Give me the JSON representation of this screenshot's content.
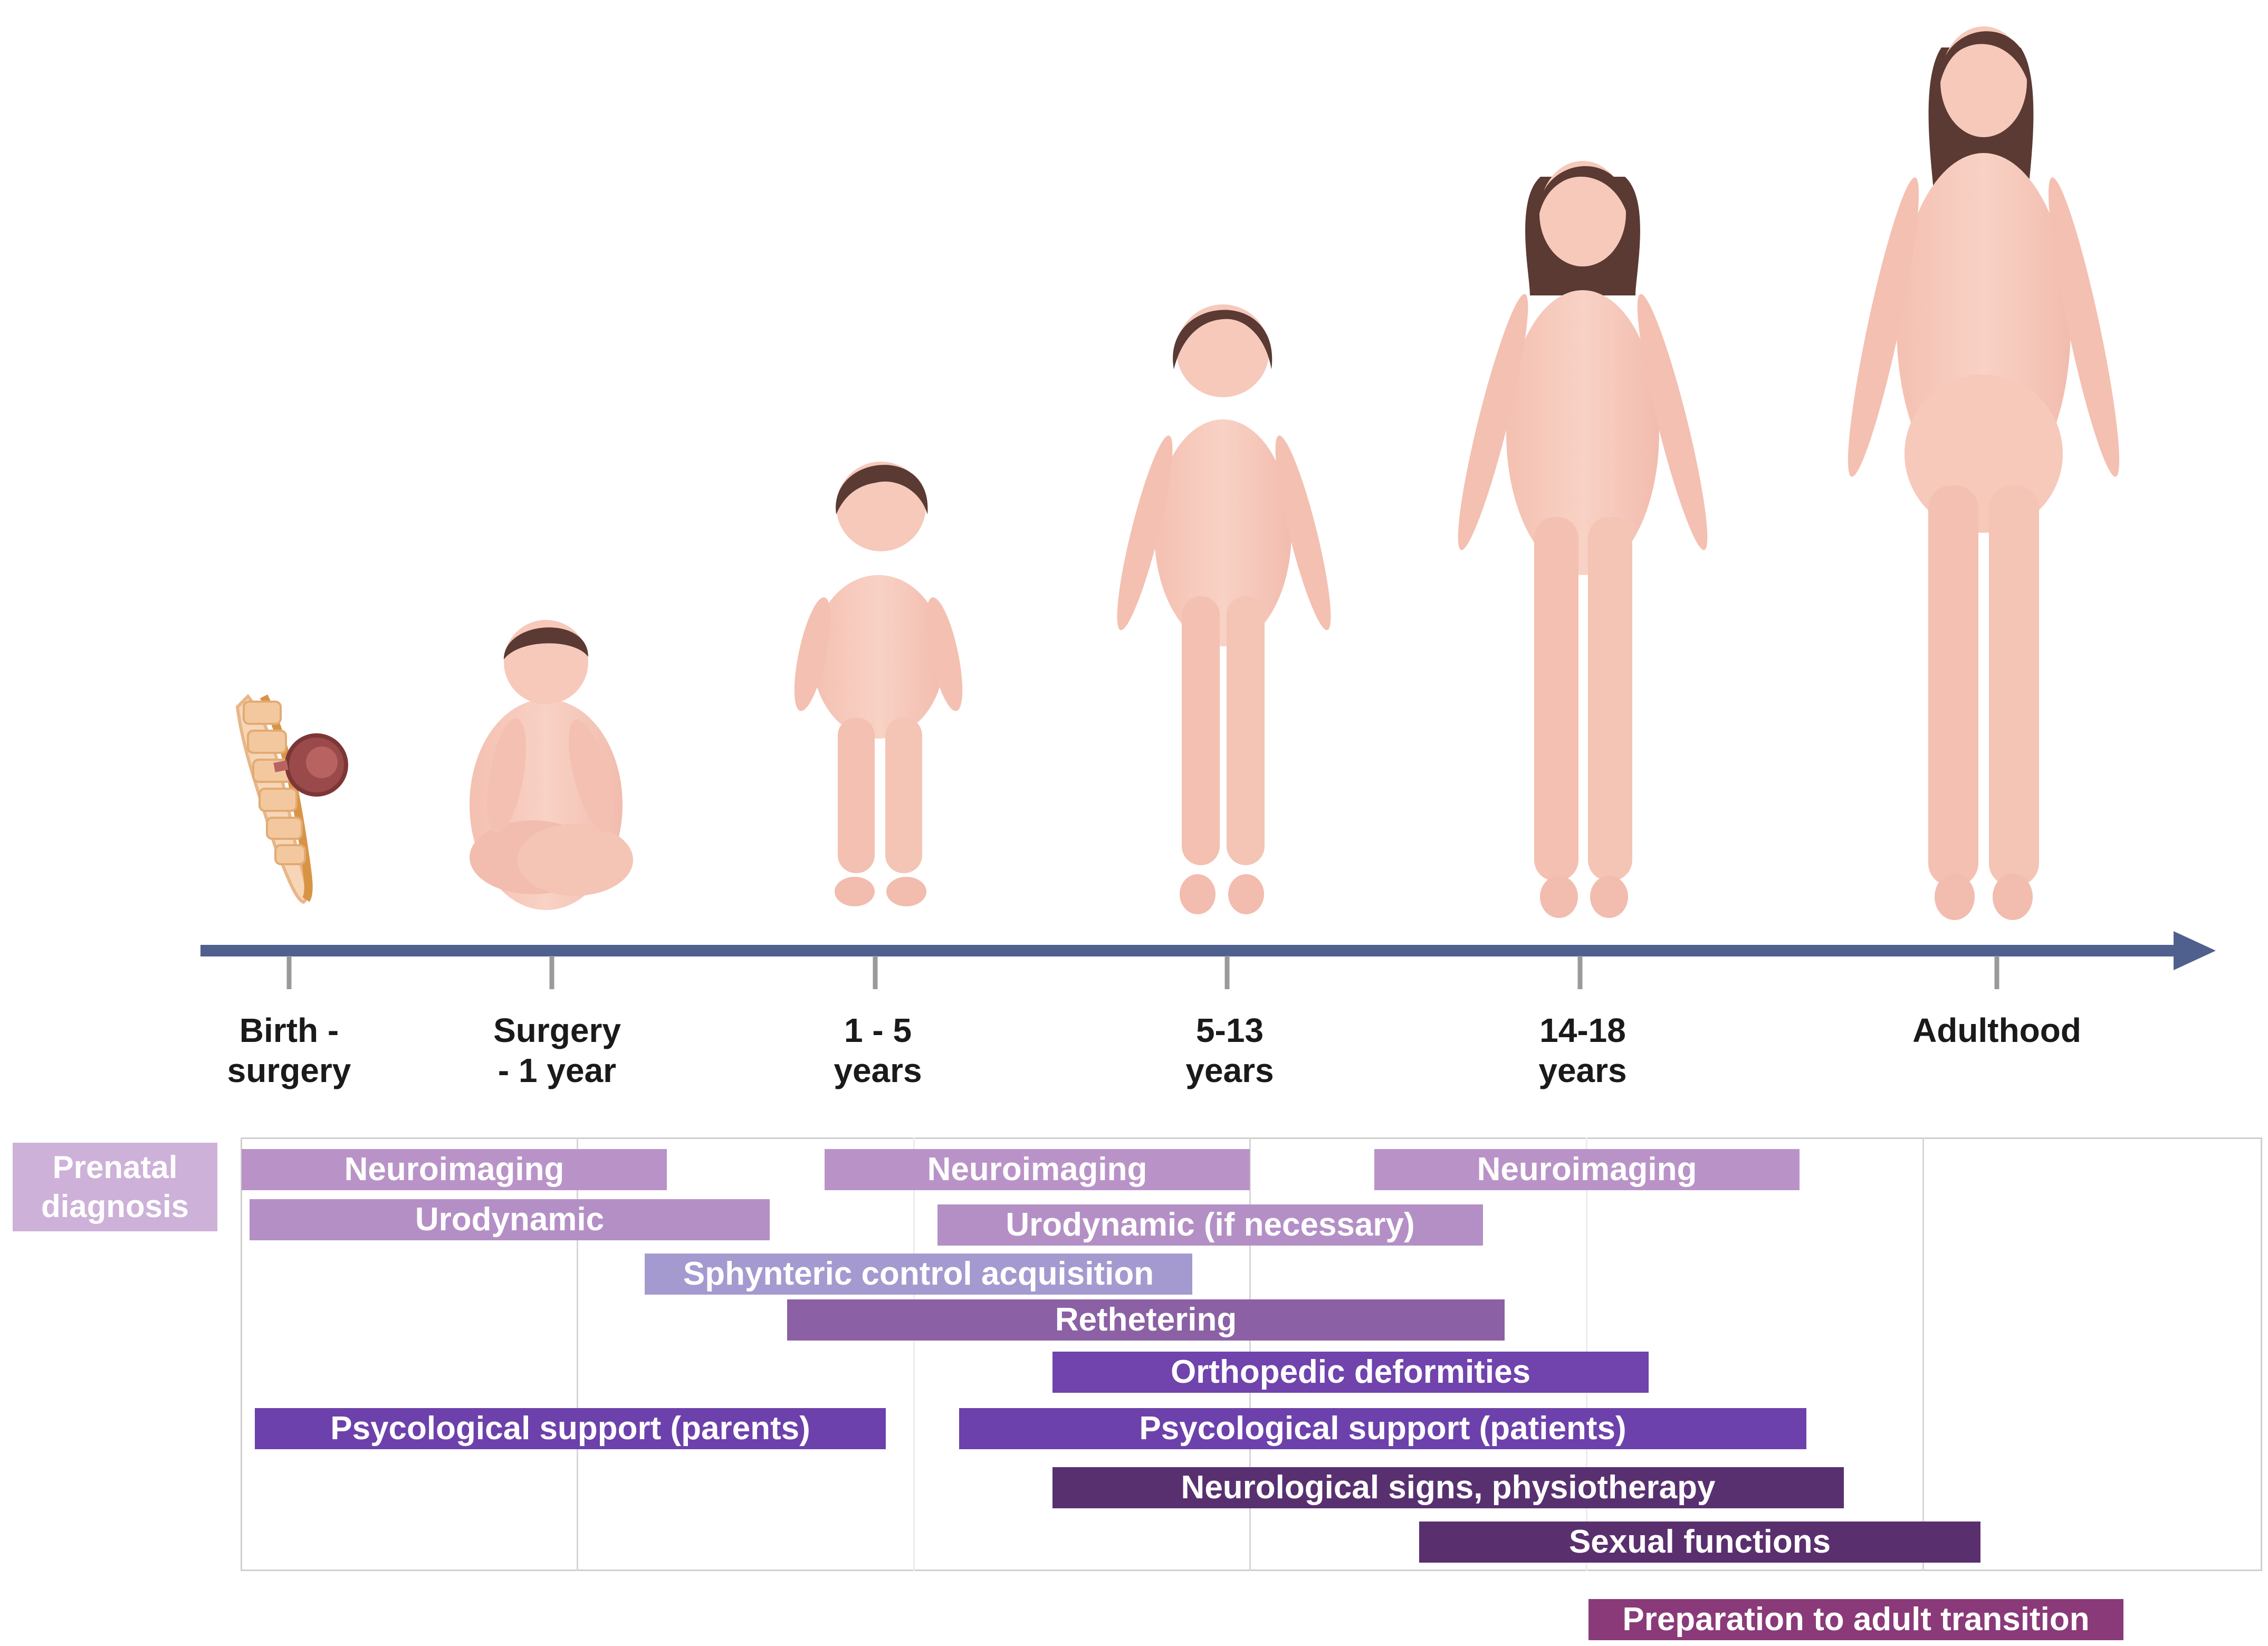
{
  "stages": [
    {
      "id": "birth",
      "label": "Birth -\nsurgery"
    },
    {
      "id": "surgery",
      "label": "Surgery\n- 1 year"
    },
    {
      "id": "toddler",
      "label": "1 - 5\nyears"
    },
    {
      "id": "child",
      "label": "5-13\nyears"
    },
    {
      "id": "teen",
      "label": "14-18\nyears"
    },
    {
      "id": "adult",
      "label": "Adulthood"
    }
  ],
  "prenatal_label": "Prenatal\ndiagnosis",
  "bars": [
    {
      "id": "neuroimaging-1",
      "label": "Neuroimaging",
      "color": "#b993c7"
    },
    {
      "id": "neuroimaging-2",
      "label": "Neuroimaging",
      "color": "#b993c7"
    },
    {
      "id": "neuroimaging-3",
      "label": "Neuroimaging",
      "color": "#b993c7"
    },
    {
      "id": "urodynamic",
      "label": "Urodynamic",
      "color": "#b48fc6"
    },
    {
      "id": "urodynamic-if-necessary",
      "label": "Urodynamic (if necessary)",
      "color": "#b48fc6"
    },
    {
      "id": "sphincteric-control",
      "label": "Sphynteric control acquisition",
      "color": "#a49ad0"
    },
    {
      "id": "rethetering",
      "label": "Rethetering",
      "color": "#8b60a4"
    },
    {
      "id": "orthopedic-deformities",
      "label": "Orthopedic deformities",
      "color": "#7043ad"
    },
    {
      "id": "psychological-support-parents",
      "label": "Psycological support (parents)",
      "color": "#6d41ab"
    },
    {
      "id": "psychological-support-patients",
      "label": "Psycological support (patients)",
      "color": "#6d41ab"
    },
    {
      "id": "neurological-signs",
      "label": "Neurological signs, physiotherapy",
      "color": "#58306f"
    },
    {
      "id": "sexual-functions",
      "label": "Sexual functions",
      "color": "#5a2f6e"
    },
    {
      "id": "adult-transition",
      "label": "Preparation to adult transition",
      "color": "#8a3a78"
    }
  ],
  "colors": {
    "axis": "#4f5f8e",
    "skin": "#f6c9bb",
    "skin_shadow": "#eeb4a4",
    "hair": "#5a3a33"
  }
}
